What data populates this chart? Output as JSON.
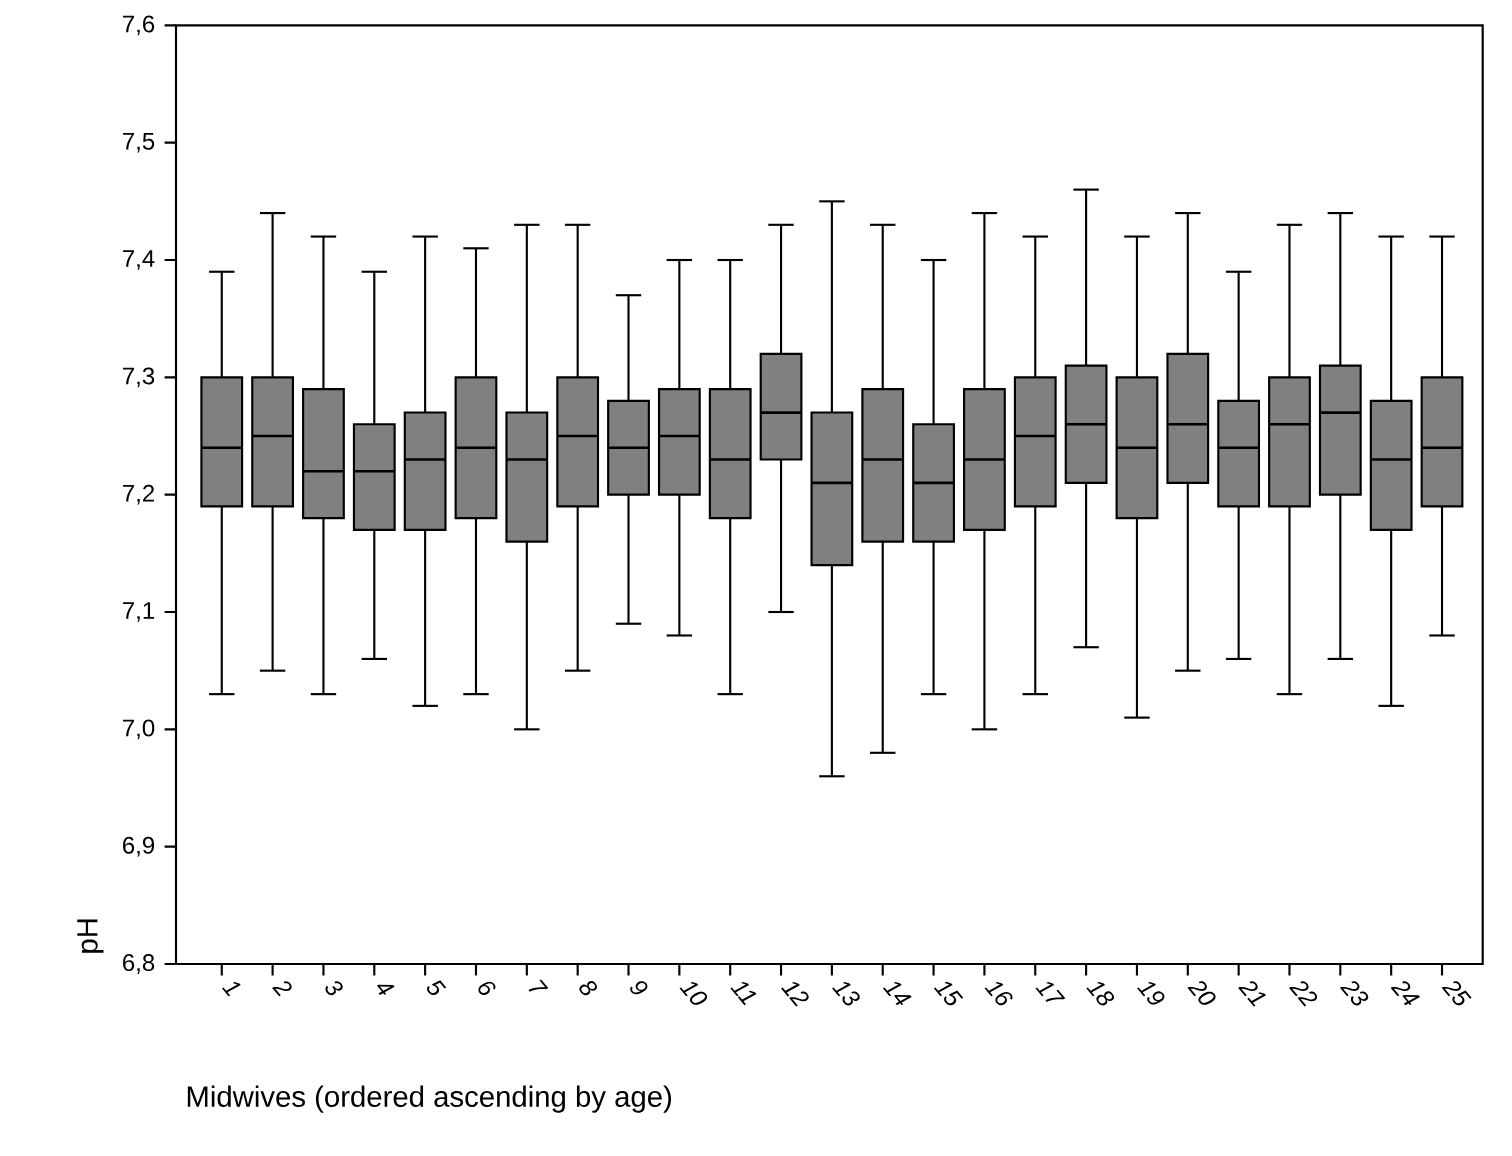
{
  "chart_data": {
    "type": "box",
    "xlabel": "Midwives (ordered ascending by age)",
    "ylabel": "pH",
    "color": "#808080",
    "categories": [
      "1",
      "2",
      "3",
      "4",
      "5",
      "6",
      "7",
      "8",
      "9",
      "10",
      "11",
      "12",
      "13",
      "14",
      "15",
      "16",
      "17",
      "18",
      "19",
      "20",
      "21",
      "22",
      "23",
      "24",
      "25"
    ],
    "ylim": [
      6.8,
      7.6
    ],
    "yticks": [
      {
        "value": 6.8,
        "label": "6,8"
      },
      {
        "value": 6.9,
        "label": "6,9"
      },
      {
        "value": 7.0,
        "label": "7,0"
      },
      {
        "value": 7.1,
        "label": "7,1"
      },
      {
        "value": 7.2,
        "label": "7,2"
      },
      {
        "value": 7.3,
        "label": "7,3"
      },
      {
        "value": 7.4,
        "label": "7,4"
      },
      {
        "value": 7.5,
        "label": "7,5"
      },
      {
        "value": 7.6,
        "label": "7,6"
      }
    ],
    "boxes": [
      {
        "low": 7.03,
        "q1": 7.19,
        "median": 7.24,
        "q3": 7.3,
        "high": 7.39
      },
      {
        "low": 7.05,
        "q1": 7.19,
        "median": 7.25,
        "q3": 7.3,
        "high": 7.44
      },
      {
        "low": 7.03,
        "q1": 7.18,
        "median": 7.22,
        "q3": 7.29,
        "high": 7.42
      },
      {
        "low": 7.06,
        "q1": 7.17,
        "median": 7.22,
        "q3": 7.26,
        "high": 7.39
      },
      {
        "low": 7.02,
        "q1": 7.17,
        "median": 7.23,
        "q3": 7.27,
        "high": 7.42
      },
      {
        "low": 7.03,
        "q1": 7.18,
        "median": 7.24,
        "q3": 7.3,
        "high": 7.41
      },
      {
        "low": 7.0,
        "q1": 7.16,
        "median": 7.23,
        "q3": 7.27,
        "high": 7.43
      },
      {
        "low": 7.05,
        "q1": 7.19,
        "median": 7.25,
        "q3": 7.3,
        "high": 7.43
      },
      {
        "low": 7.09,
        "q1": 7.2,
        "median": 7.24,
        "q3": 7.28,
        "high": 7.37
      },
      {
        "low": 7.08,
        "q1": 7.2,
        "median": 7.25,
        "q3": 7.29,
        "high": 7.4
      },
      {
        "low": 7.03,
        "q1": 7.18,
        "median": 7.23,
        "q3": 7.29,
        "high": 7.4
      },
      {
        "low": 7.1,
        "q1": 7.23,
        "median": 7.27,
        "q3": 7.32,
        "high": 7.43
      },
      {
        "low": 6.96,
        "q1": 7.14,
        "median": 7.21,
        "q3": 7.27,
        "high": 7.45
      },
      {
        "low": 6.98,
        "q1": 7.16,
        "median": 7.23,
        "q3": 7.29,
        "high": 7.43
      },
      {
        "low": 7.03,
        "q1": 7.16,
        "median": 7.21,
        "q3": 7.26,
        "high": 7.4
      },
      {
        "low": 7.0,
        "q1": 7.17,
        "median": 7.23,
        "q3": 7.29,
        "high": 7.44
      },
      {
        "low": 7.03,
        "q1": 7.19,
        "median": 7.25,
        "q3": 7.3,
        "high": 7.42
      },
      {
        "low": 7.07,
        "q1": 7.21,
        "median": 7.26,
        "q3": 7.31,
        "high": 7.46
      },
      {
        "low": 7.01,
        "q1": 7.18,
        "median": 7.24,
        "q3": 7.3,
        "high": 7.42
      },
      {
        "low": 7.05,
        "q1": 7.21,
        "median": 7.26,
        "q3": 7.32,
        "high": 7.44
      },
      {
        "low": 7.06,
        "q1": 7.19,
        "median": 7.24,
        "q3": 7.28,
        "high": 7.39
      },
      {
        "low": 7.03,
        "q1": 7.19,
        "median": 7.26,
        "q3": 7.3,
        "high": 7.43
      },
      {
        "low": 7.06,
        "q1": 7.2,
        "median": 7.27,
        "q3": 7.31,
        "high": 7.44
      },
      {
        "low": 7.02,
        "q1": 7.17,
        "median": 7.23,
        "q3": 7.28,
        "high": 7.42
      },
      {
        "low": 7.08,
        "q1": 7.19,
        "median": 7.24,
        "q3": 7.3,
        "high": 7.42
      }
    ]
  }
}
